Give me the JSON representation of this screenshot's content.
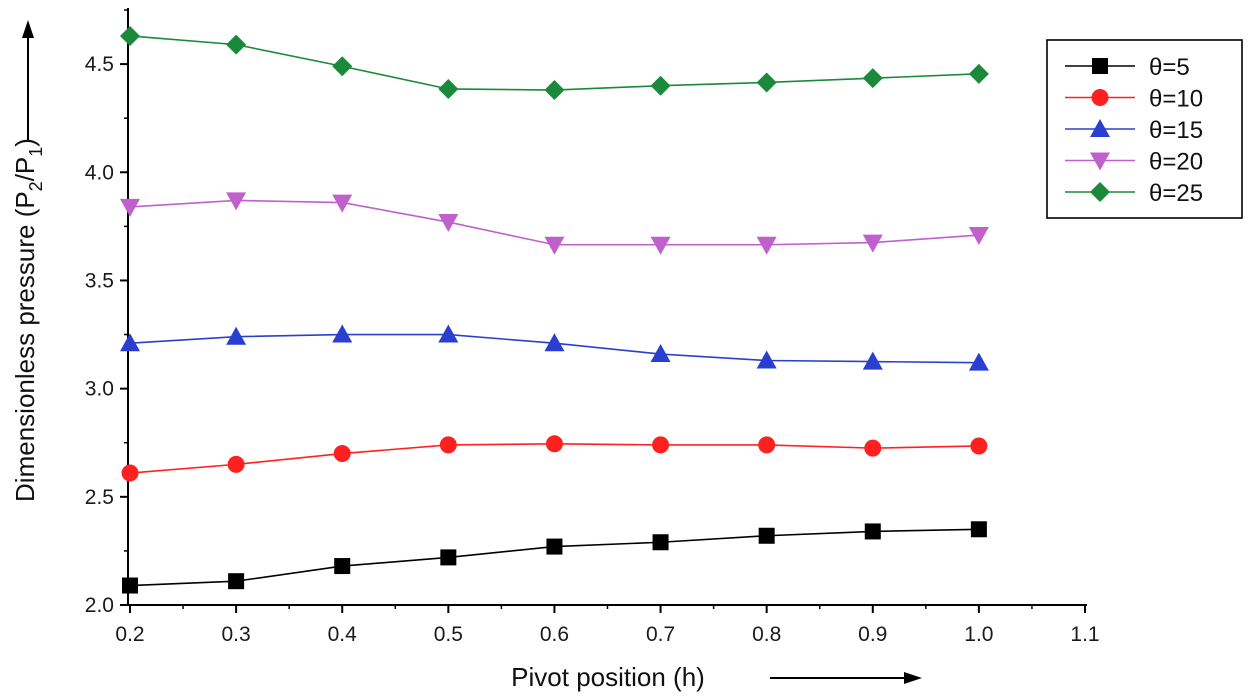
{
  "chart_data": {
    "type": "line",
    "xlabel": "Pivot position (h)",
    "ylabel_main": "Dimensionless pressure (P",
    "ylabel_sub1": "2",
    "ylabel_mid": "/P",
    "ylabel_sub2": "1",
    "ylabel_close": ")",
    "xlim": [
      0.2,
      1.1
    ],
    "ylim": [
      2.0,
      4.75
    ],
    "x_ticks": [
      "0.2",
      "0.3",
      "0.4",
      "0.5",
      "0.6",
      "0.7",
      "0.8",
      "0.9",
      "1.0",
      "1.1"
    ],
    "y_ticks": [
      "2.0",
      "2.5",
      "3.0",
      "3.5",
      "4.0",
      "4.5"
    ],
    "x": [
      0.2,
      0.3,
      0.4,
      0.5,
      0.6,
      0.7,
      0.8,
      0.9,
      1.0
    ],
    "grid": false,
    "legend_position": "top-right",
    "series": [
      {
        "name": "θ=5",
        "color": "#000000",
        "marker": "square",
        "values": [
          2.09,
          2.11,
          2.18,
          2.22,
          2.27,
          2.29,
          2.32,
          2.34,
          2.35
        ]
      },
      {
        "name": "θ=10",
        "color": "#ff2020",
        "marker": "circle",
        "values": [
          2.61,
          2.65,
          2.7,
          2.74,
          2.745,
          2.74,
          2.74,
          2.725,
          2.735
        ]
      },
      {
        "name": "θ=15",
        "color": "#2a3fd0",
        "marker": "triangle-up",
        "values": [
          3.21,
          3.24,
          3.25,
          3.25,
          3.21,
          3.16,
          3.13,
          3.125,
          3.12
        ]
      },
      {
        "name": "θ=20",
        "color": "#c060cc",
        "marker": "triangle-down",
        "values": [
          3.84,
          3.87,
          3.86,
          3.77,
          3.665,
          3.665,
          3.665,
          3.675,
          3.71
        ]
      },
      {
        "name": "θ=25",
        "color": "#1a8a3a",
        "marker": "diamond",
        "values": [
          4.63,
          4.59,
          4.49,
          4.385,
          4.38,
          4.4,
          4.415,
          4.435,
          4.455
        ]
      }
    ]
  }
}
